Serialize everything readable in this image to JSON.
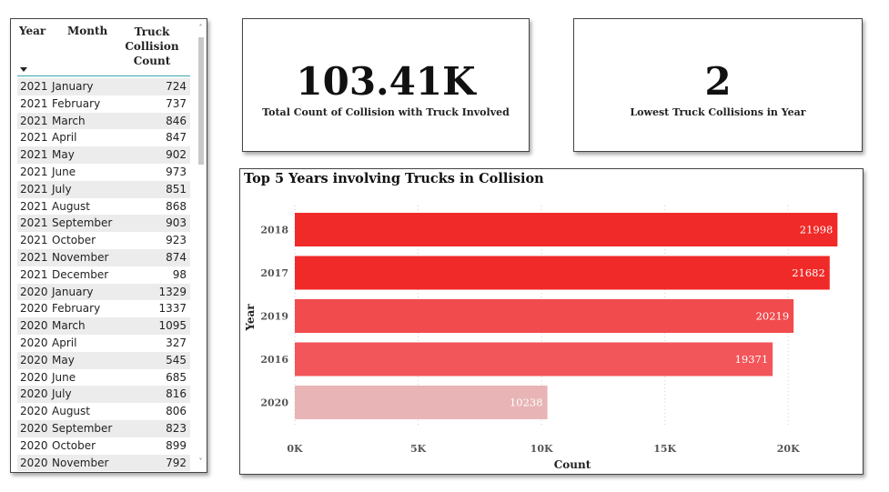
{
  "table": {
    "headers": {
      "year": "Year",
      "month": "Month",
      "count_lines": [
        "Truck",
        "Collision",
        "Count"
      ]
    },
    "rows": [
      {
        "year": "2021",
        "month": "January",
        "count": "724"
      },
      {
        "year": "2021",
        "month": "February",
        "count": "737"
      },
      {
        "year": "2021",
        "month": "March",
        "count": "846"
      },
      {
        "year": "2021",
        "month": "April",
        "count": "847"
      },
      {
        "year": "2021",
        "month": "May",
        "count": "902"
      },
      {
        "year": "2021",
        "month": "June",
        "count": "973"
      },
      {
        "year": "2021",
        "month": "July",
        "count": "851"
      },
      {
        "year": "2021",
        "month": "August",
        "count": "868"
      },
      {
        "year": "2021",
        "month": "September",
        "count": "903"
      },
      {
        "year": "2021",
        "month": "October",
        "count": "923"
      },
      {
        "year": "2021",
        "month": "November",
        "count": "874"
      },
      {
        "year": "2021",
        "month": "December",
        "count": "98"
      },
      {
        "year": "2020",
        "month": "January",
        "count": "1329"
      },
      {
        "year": "2020",
        "month": "February",
        "count": "1337"
      },
      {
        "year": "2020",
        "month": "March",
        "count": "1095"
      },
      {
        "year": "2020",
        "month": "April",
        "count": "327"
      },
      {
        "year": "2020",
        "month": "May",
        "count": "545"
      },
      {
        "year": "2020",
        "month": "June",
        "count": "685"
      },
      {
        "year": "2020",
        "month": "July",
        "count": "816"
      },
      {
        "year": "2020",
        "month": "August",
        "count": "806"
      },
      {
        "year": "2020",
        "month": "September",
        "count": "823"
      },
      {
        "year": "2020",
        "month": "October",
        "count": "899"
      },
      {
        "year": "2020",
        "month": "November",
        "count": "792"
      }
    ],
    "scroll_up_glyph": "˄",
    "scroll_down_glyph": "˅"
  },
  "kpi_total": {
    "value": "103.41K",
    "label": "Total Count of Collision with Truck Involved"
  },
  "kpi_lowest": {
    "value": "2",
    "label": "Lowest Truck Collisions in Year"
  },
  "chart_data": {
    "type": "bar",
    "orientation": "horizontal",
    "title": "Top 5 Years involving Trucks in Collision",
    "categories": [
      "2018",
      "2017",
      "2019",
      "2016",
      "2020"
    ],
    "values": [
      21998,
      21682,
      20219,
      19371,
      10238
    ],
    "colors": [
      "#f02a28",
      "#f02a28",
      "#f14b4e",
      "#f2555a",
      "#e8b4b5"
    ],
    "xlabel": "Count",
    "ylabel": "Year",
    "xlim": [
      0,
      22500
    ],
    "xticks": [
      0,
      5000,
      10000,
      15000,
      20000
    ],
    "xtick_labels": [
      "0K",
      "5K",
      "10K",
      "15K",
      "20K"
    ],
    "data_labels": true,
    "grid": "vertical dotted"
  }
}
